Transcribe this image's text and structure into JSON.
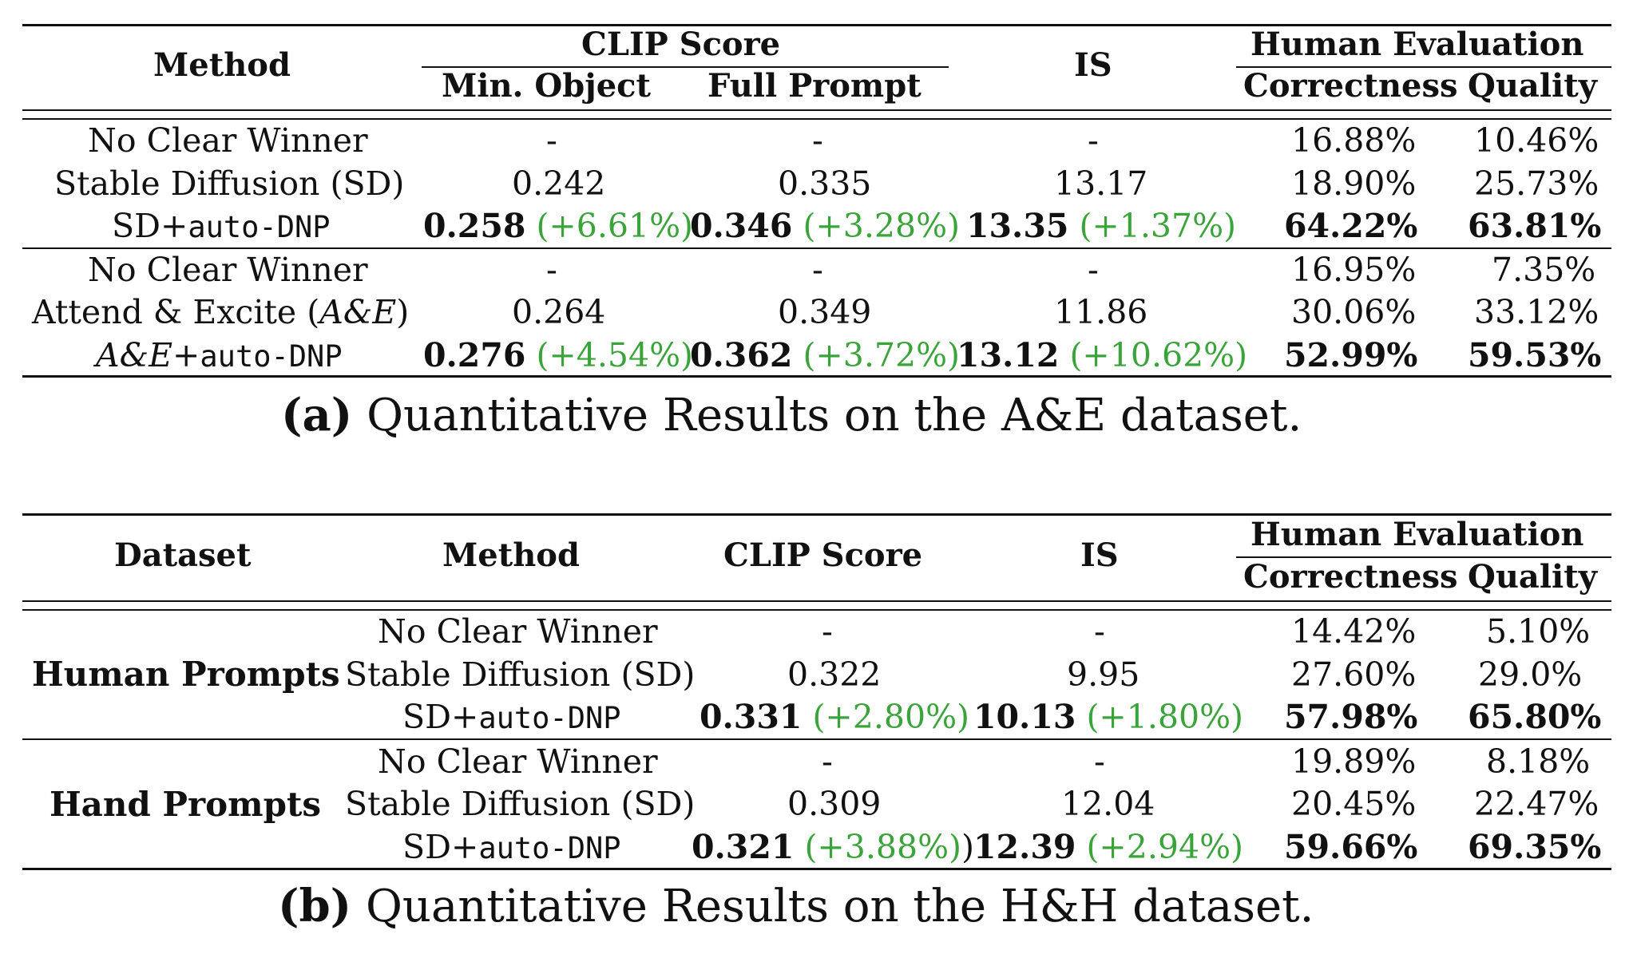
{
  "table_a": {
    "headers": {
      "method": "Method",
      "clip_score": "CLIP Score",
      "min_object": "Min. Object",
      "full_prompt": "Full Prompt",
      "is": "IS",
      "human_eval": "Human Evaluation",
      "correctness": "Correctness",
      "quality": "Quality"
    },
    "rows": [
      {
        "method": "No Clear Winner",
        "min_object": "-",
        "full_prompt": "-",
        "is": "-",
        "correctness": "16.88%",
        "quality": "10.46%"
      },
      {
        "method": "Stable Diffusion (SD)",
        "min_object": "0.242",
        "full_prompt": "0.335",
        "is": "13.17",
        "correctness": "18.90%",
        "quality": "25.73%"
      },
      {
        "method_prefix": "SD+",
        "method_code": "auto-DNP",
        "min_object": "0.258",
        "min_object_gain": "(+6.61%)",
        "full_prompt": "0.346",
        "full_prompt_gain": "(+3.28%)",
        "is": "13.35",
        "is_gain": "(+1.37%)",
        "correctness": "64.22%",
        "quality": "63.81%"
      },
      {
        "method": "No Clear Winner",
        "min_object": "-",
        "full_prompt": "-",
        "is": "-",
        "correctness": "16.95%",
        "quality": "7.35%"
      },
      {
        "method_prefix": "Attend & Excite (",
        "method_italic": "A&E",
        "method_suffix": ")",
        "min_object": "0.264",
        "full_prompt": "0.349",
        "is": "11.86",
        "correctness": "30.06%",
        "quality": "33.12%"
      },
      {
        "method_italic": "A&E",
        "method_prefix": "+",
        "method_code": "auto-DNP",
        "min_object": "0.276",
        "min_object_gain": "(+4.54%)",
        "full_prompt": "0.362",
        "full_prompt_gain": "(+3.72%)",
        "is": "13.12",
        "is_gain": "(+10.62%)",
        "correctness": "52.99%",
        "quality": "59.53%"
      }
    ],
    "caption_label": "(a)",
    "caption_text": "Quantitative Results on the A&E dataset."
  },
  "table_b": {
    "headers": {
      "dataset": "Dataset",
      "method": "Method",
      "clip_score": "CLIP Score",
      "is": "IS",
      "human_eval": "Human Evaluation",
      "correctness": "Correctness",
      "quality": "Quality"
    },
    "groups": [
      {
        "dataset": "Human Prompts",
        "rows": [
          {
            "method": "No Clear Winner",
            "clip": "-",
            "is": "-",
            "correctness": "14.42%",
            "quality": "5.10%"
          },
          {
            "method": "Stable Diffusion (SD)",
            "clip": "0.322",
            "is": "9.95",
            "correctness": "27.60%",
            "quality": "29.0%"
          },
          {
            "method_prefix": "SD+",
            "method_code": "auto-DNP",
            "clip": "0.331",
            "clip_gain": "(+2.80%)",
            "is": "10.13",
            "is_gain": "(+1.80%)",
            "correctness": "57.98%",
            "quality": "65.80%"
          }
        ]
      },
      {
        "dataset": "Hand Prompts",
        "rows": [
          {
            "method": "No Clear Winner",
            "clip": "-",
            "is": "-",
            "correctness": "19.89%",
            "quality": "8.18%"
          },
          {
            "method": "Stable Diffusion (SD)",
            "clip": "0.309",
            "is": "12.04",
            "correctness": "20.45%",
            "quality": "22.47%"
          },
          {
            "method_prefix": "SD+",
            "method_code": "auto-DNP",
            "clip": "0.321",
            "clip_gain": "(+3.88%)",
            "clip_suffix": ")",
            "is": "12.39",
            "is_gain": "(+2.94%)",
            "correctness": "59.66%",
            "quality": "69.35%"
          }
        ]
      }
    ],
    "caption_label": "(b)",
    "caption_text": "Quantitative Results on the H&H dataset."
  }
}
